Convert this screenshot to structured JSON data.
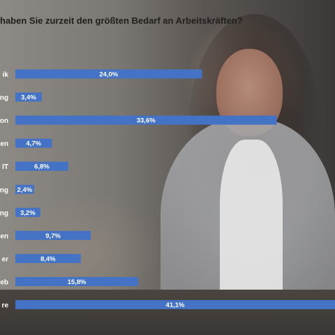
{
  "title": "haben Sie zurzeit den größten Bedarf an Arbeitskräften?",
  "chart_data": {
    "type": "bar",
    "orientation": "horizontal",
    "title": "haben Sie zurzeit den größten Bedarf an Arbeitskräften?",
    "categories": [
      "ik",
      "ng",
      "on",
      "en",
      "IT",
      "ng",
      "ng",
      "en",
      "er",
      "eb",
      "re"
    ],
    "values": [
      24.0,
      3.4,
      33.6,
      4.7,
      6.8,
      2.4,
      3.2,
      9.7,
      8.4,
      15.8,
      41.1
    ],
    "value_labels": [
      "24,0%",
      "3,4%",
      "33,6%",
      "4,7%",
      "6,8%",
      "2,4%",
      "3,2%",
      "9,7%",
      "8,4%",
      "15,8%",
      "41,1%"
    ],
    "bar_color": "#4472c4",
    "xlabel": "",
    "ylabel": "",
    "xlim": [
      0,
      41.1
    ],
    "grid": false,
    "legend": "none"
  }
}
